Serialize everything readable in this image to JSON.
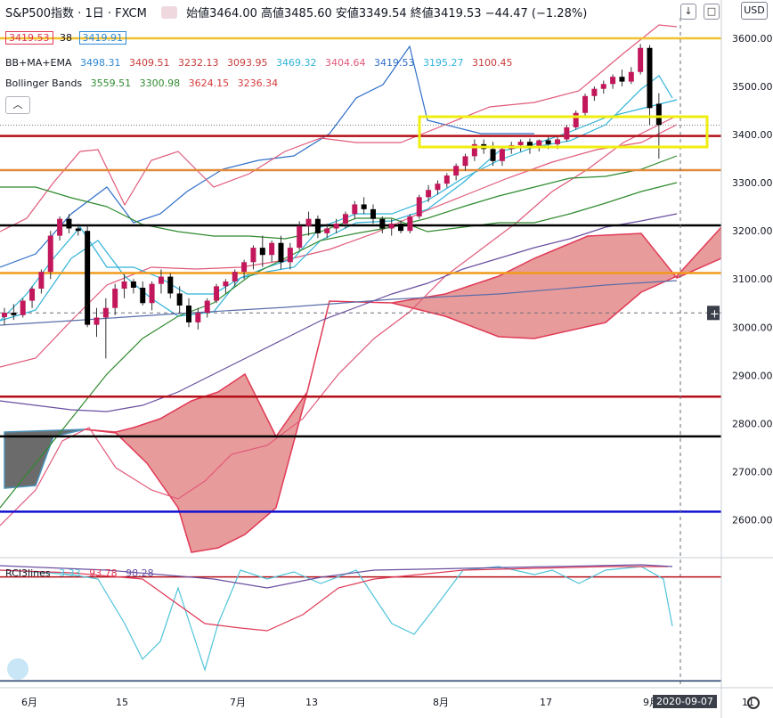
{
  "header": {
    "title": "S&P500指数 · 1日 · FXCM",
    "ohlc": "始値3464.00 高値3485.60 安値3349.54 終値3419.53 −44.47 (−1.28%)",
    "bid": "3419.53",
    "spread": "38",
    "ask": "3419.91",
    "currency": "USD"
  },
  "indicators": {
    "bbmaema": {
      "name": "BB+MA+EMA",
      "values": [
        "3498.31",
        "3409.51",
        "3232.13",
        "3093.95",
        "3469.32",
        "3404.64",
        "3419.53",
        "3195.27",
        "3100.45"
      ],
      "colors": [
        "#2f8ad6",
        "#c83a3a",
        "#c83a3a",
        "#c83a3a",
        "#2fb3d8",
        "#e05a7a",
        "#2f6ec8",
        "#2fb3d8",
        "#c83a3a"
      ]
    },
    "bollinger": {
      "name": "Bollinger Bands",
      "values": [
        "3559.51",
        "3300.98",
        "3624.15",
        "3236.34"
      ],
      "colors": [
        "#2f8a2f",
        "#2f8a2f",
        "#d63a3a",
        "#d63a3a"
      ]
    },
    "rci": {
      "name": "RCI3lines",
      "values": [
        "3.33",
        "93.78",
        "98.28"
      ],
      "colors": [
        "#4fc3d9",
        "#e03a56",
        "#6a4fa0"
      ]
    }
  },
  "chart_data": {
    "type": "candlestick",
    "y_axis": {
      "ticks": [
        3600,
        3500,
        3400,
        3300,
        3200,
        3100,
        3000,
        2900,
        2800,
        2700,
        2600
      ],
      "labels": [
        "3600.00",
        "3500.00",
        "3400.00",
        "3300.00",
        "3200.00",
        "3100.00",
        "3000.00",
        "2900.00",
        "2800.00",
        "2700.00",
        "2600.00"
      ]
    },
    "x_axis": {
      "labels": [
        "6月",
        "15",
        "7月",
        "13",
        "8月",
        "17",
        "9月",
        "11"
      ]
    },
    "hlines": [
      {
        "price": 3600.0,
        "label": "3600.00",
        "color": "#f2c12e"
      },
      {
        "price": 3397.14,
        "label": "3397.14",
        "color": "#b40f18"
      },
      {
        "price": 3326.1,
        "label": "3326.10",
        "color": "#e08a3a"
      },
      {
        "price": 3211.4,
        "label": "3211.40",
        "color": "#000000"
      },
      {
        "price": 3112.5,
        "label": "3112.50",
        "color": "#f29a1a"
      },
      {
        "price": 2855.8,
        "label": "2855.80",
        "color": "#b40f18"
      },
      {
        "price": 2773.2,
        "label": "2773.20",
        "color": "#000000"
      },
      {
        "price": 2617.0,
        "label": "2617.00",
        "color": "#1010d0"
      }
    ],
    "last_price_label": "3419.53",
    "crosshair_label": "3029.63",
    "candles": [
      [
        3021,
        3040,
        3005,
        3030
      ],
      [
        3030,
        3048,
        3015,
        3025
      ],
      [
        3025,
        3060,
        3020,
        3055
      ],
      [
        3055,
        3085,
        3040,
        3080
      ],
      [
        3080,
        3120,
        3070,
        3115
      ],
      [
        3115,
        3200,
        3100,
        3190
      ],
      [
        3190,
        3230,
        3180,
        3225
      ],
      [
        3225,
        3235,
        3195,
        3205
      ],
      [
        3205,
        3215,
        3190,
        3200
      ],
      [
        3200,
        3210,
        3000,
        3005
      ],
      [
        3005,
        3040,
        2980,
        3020
      ],
      [
        3020,
        3060,
        2935,
        3040
      ],
      [
        3040,
        3090,
        3025,
        3080
      ],
      [
        3080,
        3110,
        3060,
        3095
      ],
      [
        3095,
        3100,
        3070,
        3082
      ],
      [
        3082,
        3095,
        3045,
        3050
      ],
      [
        3050,
        3095,
        3035,
        3090
      ],
      [
        3090,
        3120,
        3070,
        3105
      ],
      [
        3105,
        3112,
        3060,
        3070
      ],
      [
        3070,
        3085,
        3030,
        3045
      ],
      [
        3045,
        3060,
        3000,
        3010
      ],
      [
        3010,
        3040,
        2995,
        3030
      ],
      [
        3030,
        3060,
        3020,
        3055
      ],
      [
        3055,
        3090,
        3050,
        3085
      ],
      [
        3085,
        3100,
        3070,
        3095
      ],
      [
        3095,
        3120,
        3085,
        3115
      ],
      [
        3115,
        3140,
        3100,
        3135
      ],
      [
        3135,
        3170,
        3120,
        3165
      ],
      [
        3165,
        3190,
        3125,
        3150
      ],
      [
        3150,
        3180,
        3135,
        3175
      ],
      [
        3175,
        3190,
        3120,
        3135
      ],
      [
        3135,
        3175,
        3120,
        3165
      ],
      [
        3165,
        3220,
        3160,
        3210
      ],
      [
        3210,
        3240,
        3190,
        3225
      ],
      [
        3225,
        3232,
        3185,
        3195
      ],
      [
        3195,
        3215,
        3185,
        3205
      ],
      [
        3205,
        3225,
        3195,
        3215
      ],
      [
        3215,
        3240,
        3205,
        3235
      ],
      [
        3235,
        3262,
        3225,
        3255
      ],
      [
        3255,
        3270,
        3235,
        3245
      ],
      [
        3245,
        3255,
        3215,
        3225
      ],
      [
        3225,
        3230,
        3195,
        3205
      ],
      [
        3205,
        3225,
        3190,
        3215
      ],
      [
        3215,
        3222,
        3195,
        3200
      ],
      [
        3200,
        3235,
        3195,
        3230
      ],
      [
        3230,
        3275,
        3225,
        3270
      ],
      [
        3270,
        3295,
        3260,
        3285
      ],
      [
        3285,
        3305,
        3275,
        3298
      ],
      [
        3298,
        3320,
        3290,
        3315
      ],
      [
        3315,
        3340,
        3305,
        3335
      ],
      [
        3335,
        3360,
        3325,
        3355
      ],
      [
        3355,
        3390,
        3345,
        3380
      ],
      [
        3380,
        3390,
        3360,
        3370
      ],
      [
        3370,
        3385,
        3335,
        3345
      ],
      [
        3345,
        3375,
        3335,
        3370
      ],
      [
        3370,
        3385,
        3360,
        3378
      ],
      [
        3378,
        3390,
        3365,
        3385
      ],
      [
        3385,
        3392,
        3360,
        3375
      ],
      [
        3375,
        3390,
        3365,
        3388
      ],
      [
        3388,
        3395,
        3370,
        3380
      ],
      [
        3380,
        3395,
        3370,
        3390
      ],
      [
        3390,
        3420,
        3385,
        3415
      ],
      [
        3415,
        3450,
        3410,
        3445
      ],
      [
        3445,
        3485,
        3440,
        3480
      ],
      [
        3480,
        3500,
        3470,
        3495
      ],
      [
        3495,
        3512,
        3485,
        3505
      ],
      [
        3505,
        3525,
        3495,
        3520
      ],
      [
        3520,
        3535,
        3500,
        3510
      ],
      [
        3510,
        3540,
        3505,
        3530
      ],
      [
        3530,
        3588,
        3525,
        3580
      ],
      [
        3580,
        3586,
        3420,
        3455
      ],
      [
        3464,
        3486,
        3350,
        3420
      ]
    ]
  }
}
